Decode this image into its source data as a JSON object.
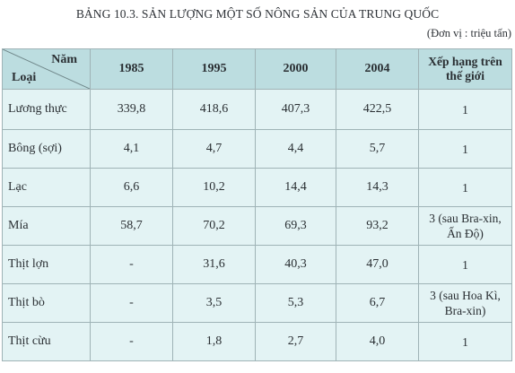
{
  "title": "BẢNG 10.3. SẢN LƯỢNG MỘT SỐ NÔNG SẢN CỦA TRUNG QUỐC",
  "unit": "(Đơn vị : triệu tấn)",
  "table": {
    "corner_year": "Năm",
    "corner_type": "Loại",
    "years": [
      "1985",
      "1995",
      "2000",
      "2004"
    ],
    "rank_header_line1": "Xếp hạng trên",
    "rank_header_line2": "thế giới",
    "rows": [
      {
        "name": "Lương thực",
        "values": [
          "339,8",
          "418,6",
          "407,3",
          "422,5"
        ],
        "rank1": "1",
        "rank2": ""
      },
      {
        "name": "Bông (sợi)",
        "values": [
          "4,1",
          "4,7",
          "4,4",
          "5,7"
        ],
        "rank1": "1",
        "rank2": ""
      },
      {
        "name": "Lạc",
        "values": [
          "6,6",
          "10,2",
          "14,4",
          "14,3"
        ],
        "rank1": "1",
        "rank2": ""
      },
      {
        "name": "Mía",
        "values": [
          "58,7",
          "70,2",
          "69,3",
          "93,2"
        ],
        "rank1": "3 (sau Bra-xin,",
        "rank2": "Ấn Độ)"
      },
      {
        "name": "Thịt lợn",
        "values": [
          "-",
          "31,6",
          "40,3",
          "47,0"
        ],
        "rank1": "1",
        "rank2": ""
      },
      {
        "name": "Thịt bò",
        "values": [
          "-",
          "3,5",
          "5,3",
          "6,7"
        ],
        "rank1": "3 (sau Hoa Kì,",
        "rank2": "Bra-xin)"
      },
      {
        "name": "Thịt cừu",
        "values": [
          "-",
          "1,8",
          "2,7",
          "4,0"
        ],
        "rank1": "1",
        "rank2": ""
      }
    ]
  }
}
